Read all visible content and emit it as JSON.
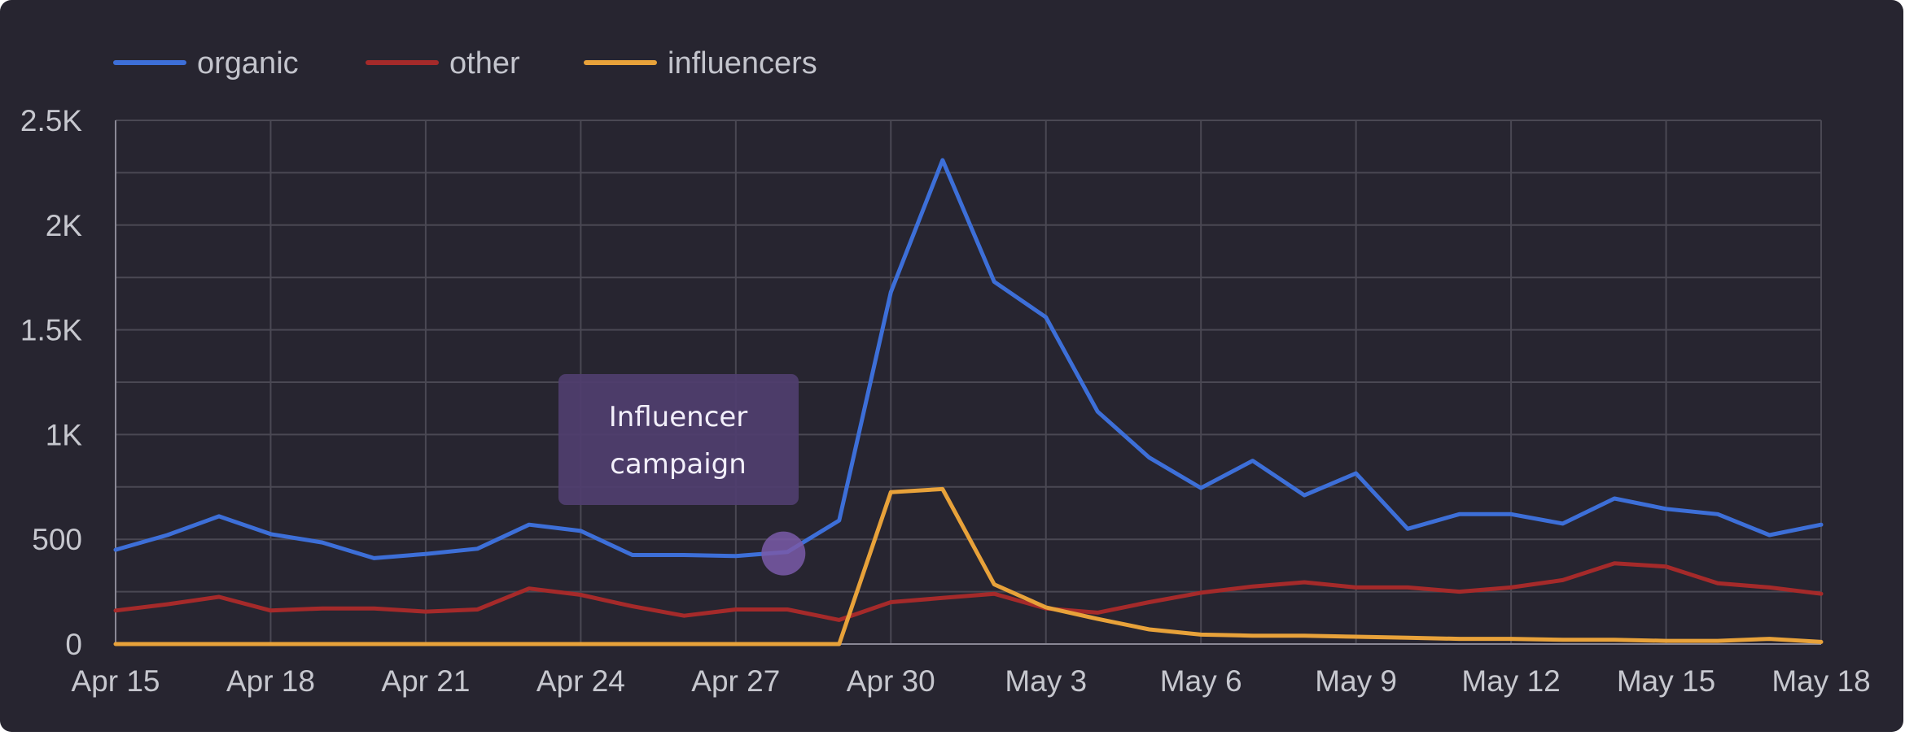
{
  "chart_data": {
    "type": "line",
    "title": "",
    "xlabel": "",
    "ylabel": "",
    "x": [
      "Apr 15",
      "Apr 16",
      "Apr 17",
      "Apr 18",
      "Apr 19",
      "Apr 20",
      "Apr 21",
      "Apr 22",
      "Apr 23",
      "Apr 24",
      "Apr 25",
      "Apr 26",
      "Apr 27",
      "Apr 28",
      "Apr 29",
      "Apr 30",
      "May 1",
      "May 2",
      "May 3",
      "May 4",
      "May 5",
      "May 6",
      "May 7",
      "May 8",
      "May 9",
      "May 10",
      "May 11",
      "May 12",
      "May 13",
      "May 14",
      "May 15",
      "May 16",
      "May 17",
      "May 18"
    ],
    "x_tick_labels": [
      "Apr 15",
      "Apr 18",
      "Apr 21",
      "Apr 24",
      "Apr 27",
      "Apr 30",
      "May 3",
      "May 6",
      "May 9",
      "May 12",
      "May 15",
      "May 18"
    ],
    "y_ticks": [
      0,
      500,
      1000,
      1500,
      2000,
      2500
    ],
    "y_tick_labels": [
      "0",
      "500",
      "1K",
      "1.5K",
      "2K",
      "2.5K"
    ],
    "ylim": [
      0,
      2500
    ],
    "grid": true,
    "legend_position": "top-left",
    "series": [
      {
        "name": "organic",
        "color": "#3d6fd8",
        "values": [
          450,
          520,
          610,
          525,
          485,
          410,
          430,
          455,
          570,
          540,
          425,
          425,
          420,
          440,
          590,
          1680,
          2310,
          1730,
          1560,
          1110,
          890,
          745,
          875,
          710,
          815,
          550,
          620,
          620,
          575,
          695,
          645,
          620,
          520,
          570
        ]
      },
      {
        "name": "other",
        "color": "#a52a2a",
        "values": [
          160,
          190,
          225,
          160,
          170,
          170,
          155,
          165,
          265,
          235,
          180,
          135,
          165,
          165,
          115,
          200,
          220,
          240,
          170,
          150,
          200,
          245,
          275,
          295,
          270,
          270,
          250,
          270,
          305,
          385,
          370,
          290,
          270,
          240
        ]
      },
      {
        "name": "influencers",
        "color": "#e8a23a",
        "values": [
          0,
          0,
          0,
          0,
          0,
          0,
          0,
          0,
          0,
          0,
          0,
          0,
          0,
          0,
          0,
          725,
          740,
          285,
          175,
          120,
          70,
          45,
          40,
          40,
          35,
          30,
          25,
          25,
          20,
          20,
          15,
          15,
          25,
          10
        ]
      }
    ],
    "annotation": {
      "text_line1": "Influencer",
      "text_line2": "campaign",
      "x": "Apr 28",
      "y": 440
    }
  }
}
